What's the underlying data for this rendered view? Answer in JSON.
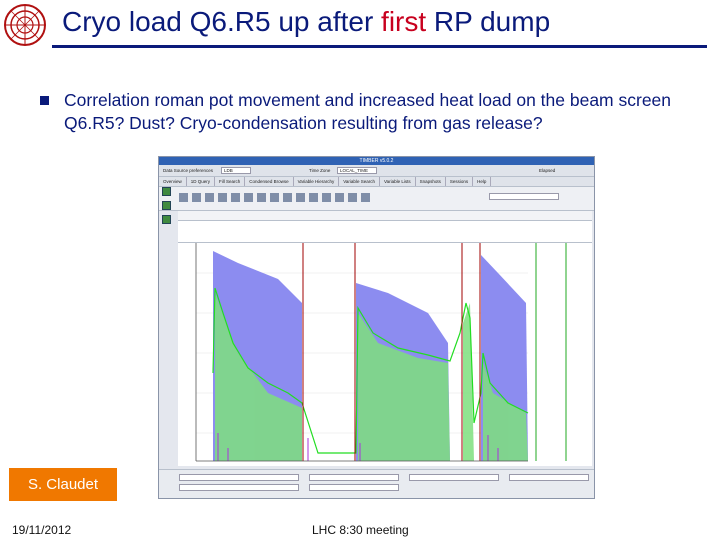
{
  "header": {
    "title_before": "Cryo load Q6.R5 up after ",
    "title_highlight": "first",
    "title_after": " RP dump",
    "logo_icon": "cern-logo-icon"
  },
  "bullet": {
    "text": "Correlation roman pot movement and increased heat load on the beam screen Q6.R5? Dust? Cryo-condensation resulting from gas release?"
  },
  "screenshot": {
    "window_title": "TIMBER v5.0.2",
    "tabs": [
      "Overview",
      "1D Query",
      "Fill Search",
      "Condensed Browse",
      "Variable Hierarchy",
      "Variable Search",
      "Variable Lists",
      "Snapshots",
      "Sessions",
      "Help"
    ],
    "toolbar_fields": [
      "Data Source preferences",
      "LDB",
      "Time Zone",
      "LOCAL_TIME",
      "Elapsed"
    ],
    "plot": {
      "colors": {
        "blue": "#8c8cf0",
        "green": "#33ee33",
        "purple": "#aa33dd",
        "red_marker": "#a00000",
        "green_marker": "#22aa22"
      }
    }
  },
  "footer": {
    "author": "S. Claudet",
    "date": "19/11/2012",
    "meeting": "LHC 8:30 meeting"
  }
}
